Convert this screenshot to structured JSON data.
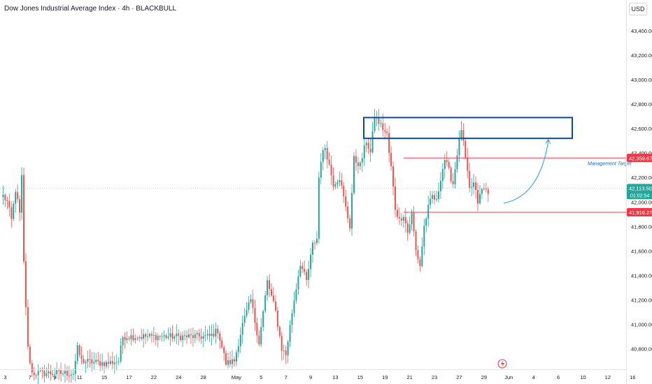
{
  "header": {
    "title": "Dow Jones Industrial Average Index · 4h · BLACKBULL",
    "currency_button": "USD"
  },
  "colors": {
    "up": "#26a69a",
    "down": "#ef5350",
    "box": "#0d47a1",
    "arrow": "#2196f3",
    "last_price": "#26a69a",
    "level": "#f23645",
    "grid_text": "#131722"
  },
  "chart_data": {
    "type": "candlestick",
    "title": "Dow Jones Industrial Average Index · 4h · BLACKBULL",
    "ylim": [
      40740,
      43480
    ],
    "price_axis_ticks": [
      "43,400.00",
      "43,200.00",
      "43,000.00",
      "42,800.00",
      "42,600.00",
      "42,400.00",
      "42,200.00",
      "42,000.00",
      "41,800.00",
      "41,600.00",
      "41,400.00",
      "41,200.00",
      "41,000.00",
      "40,800.00"
    ],
    "price_axis_values": [
      43400,
      43200,
      43000,
      42800,
      42600,
      42400,
      42200,
      42000,
      41800,
      41600,
      41400,
      41200,
      41000,
      40800
    ],
    "time_axis": [
      {
        "label": "3",
        "bar": 1
      },
      {
        "label": "7",
        "bar": 13
      },
      {
        "label": "9",
        "bar": 25
      },
      {
        "label": "11",
        "bar": 37
      },
      {
        "label": "15",
        "bar": 49
      },
      {
        "label": "17",
        "bar": 61
      },
      {
        "label": "22",
        "bar": 73
      },
      {
        "label": "24",
        "bar": 85
      },
      {
        "label": "28",
        "bar": 97
      },
      {
        "label": "May",
        "bar": 113
      },
      {
        "label": "5",
        "bar": 125
      },
      {
        "label": "7",
        "bar": 137
      },
      {
        "label": "9",
        "bar": 149
      },
      {
        "label": "13",
        "bar": 161
      },
      {
        "label": "15",
        "bar": 173
      },
      {
        "label": "19",
        "bar": 185
      },
      {
        "label": "21",
        "bar": 197
      },
      {
        "label": "23",
        "bar": 209
      },
      {
        "label": "27",
        "bar": 221
      },
      {
        "label": "29",
        "bar": 233
      },
      {
        "label": "Jun",
        "bar": 245
      },
      {
        "label": "4",
        "bar": 257
      },
      {
        "label": "6",
        "bar": 269
      },
      {
        "label": "10",
        "bar": 281
      },
      {
        "label": "12",
        "bar": 293
      },
      {
        "label": "16",
        "bar": 305
      }
    ],
    "anchors": [
      [
        0,
        42050
      ],
      [
        2,
        42000
      ],
      [
        4,
        41850
      ],
      [
        6,
        42100
      ],
      [
        8,
        41900
      ],
      [
        9,
        42200
      ],
      [
        10,
        41500
      ],
      [
        12,
        40800
      ],
      [
        14,
        40600
      ],
      [
        34,
        40600
      ],
      [
        36,
        40800
      ],
      [
        38,
        40700
      ],
      [
        50,
        40680
      ],
      [
        56,
        40700
      ],
      [
        58,
        40900
      ],
      [
        100,
        40900
      ],
      [
        104,
        40950
      ],
      [
        108,
        40680
      ],
      [
        112,
        40700
      ],
      [
        116,
        41000
      ],
      [
        120,
        41200
      ],
      [
        124,
        40850
      ],
      [
        128,
        41350
      ],
      [
        132,
        41100
      ],
      [
        135,
        40800
      ],
      [
        137,
        40750
      ],
      [
        140,
        41100
      ],
      [
        144,
        41500
      ],
      [
        147,
        41350
      ],
      [
        150,
        41650
      ],
      [
        152,
        41700
      ],
      [
        153,
        42200
      ],
      [
        154,
        42350
      ],
      [
        156,
        42450
      ],
      [
        158,
        42300
      ],
      [
        160,
        42150
      ],
      [
        163,
        42200
      ],
      [
        166,
        41950
      ],
      [
        168,
        41800
      ],
      [
        170,
        42350
      ],
      [
        173,
        42300
      ],
      [
        176,
        42500
      ],
      [
        178,
        42400
      ],
      [
        180,
        42700
      ],
      [
        182,
        42650
      ],
      [
        184,
        42600
      ],
      [
        186,
        42550
      ],
      [
        187,
        42400
      ],
      [
        188,
        42280
      ],
      [
        190,
        41950
      ],
      [
        192,
        41850
      ],
      [
        194,
        41900
      ],
      [
        196,
        41750
      ],
      [
        198,
        41900
      ],
      [
        200,
        41600
      ],
      [
        202,
        41480
      ],
      [
        204,
        41800
      ],
      [
        206,
        41950
      ],
      [
        208,
        42050
      ],
      [
        210,
        42000
      ],
      [
        212,
        42200
      ],
      [
        214,
        42350
      ],
      [
        216,
        42250
      ],
      [
        218,
        42150
      ],
      [
        220,
        42400
      ],
      [
        222,
        42600
      ],
      [
        224,
        42350
      ],
      [
        226,
        42100
      ],
      [
        228,
        42150
      ],
      [
        230,
        42000
      ],
      [
        232,
        42100
      ],
      [
        234,
        42100
      ],
      [
        235,
        42090
      ]
    ],
    "candle_count": 236,
    "last_price": 42113.5,
    "last_price_label": "42,113.50",
    "countdown": "01:02:54",
    "levels": [
      {
        "price": 42359.67,
        "label": "42,359.67"
      },
      {
        "price": 41916.27,
        "label": "41,916.27"
      }
    ],
    "zone": {
      "top": 42690,
      "bottom": 42520
    },
    "annotation": "Management Target"
  }
}
